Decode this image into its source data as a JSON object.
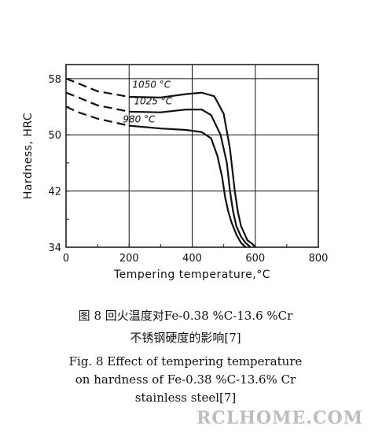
{
  "chart_data": {
    "type": "line",
    "xlabel": "Tempering temperature,°C",
    "ylabel": "Hardness, HRC",
    "xlim": [
      0,
      800
    ],
    "ylim": [
      34,
      60
    ],
    "x_ticks": [
      "0",
      "200",
      "400",
      "600",
      "800"
    ],
    "y_ticks": [
      "34",
      "42",
      "50",
      "58"
    ],
    "grid": true,
    "series": [
      {
        "name": "1050 °C",
        "x": [
          0,
          40,
          100,
          200,
          300,
          380,
          430,
          470,
          500,
          520,
          535,
          545,
          555,
          565,
          575,
          590,
          600
        ],
        "y": [
          58,
          57.3,
          56.2,
          55.4,
          55.3,
          55.8,
          56,
          55.5,
          53,
          48,
          42,
          39,
          37,
          36,
          35,
          34.5,
          34
        ]
      },
      {
        "name": "1025 °C",
        "x": [
          0,
          40,
          100,
          200,
          300,
          380,
          430,
          460,
          490,
          510,
          520,
          530,
          540,
          555,
          570,
          585
        ],
        "y": [
          56,
          55.3,
          54.2,
          53.3,
          53.2,
          53.6,
          53.6,
          52.8,
          50,
          46,
          42,
          39,
          37,
          35.5,
          34.6,
          34
        ]
      },
      {
        "name": "980 °C",
        "x": [
          0,
          40,
          100,
          200,
          300,
          380,
          430,
          460,
          480,
          495,
          505,
          515,
          525,
          540,
          555,
          570
        ],
        "y": [
          54,
          53.2,
          52.3,
          51.3,
          50.9,
          50.7,
          50.4,
          49.5,
          47,
          44,
          41,
          39,
          37.5,
          35.8,
          34.6,
          34
        ]
      }
    ],
    "solid_from_x": 200
  },
  "captions": {
    "cn_line1": "图 8  回火温度对Fe-0.38 %C-13.6 %Cr",
    "cn_line2": "不锈钢硬度的影响[7]",
    "en_line1": "Fig. 8  Effect of tempering temperature",
    "en_line2": "on hardness of Fe-0.38 %C-13.6% Cr",
    "en_line3": "stainless steel[7]"
  },
  "watermark": "RCLHOME.COM"
}
